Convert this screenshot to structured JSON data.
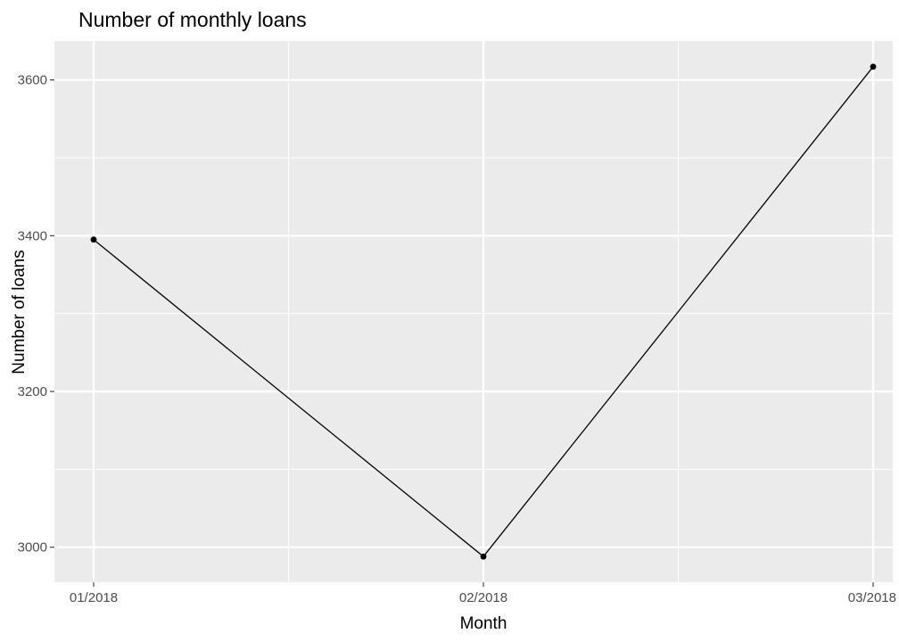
{
  "chart_data": {
    "type": "line",
    "title": "Number of monthly loans",
    "xlabel": "Month",
    "ylabel": "Number of loans",
    "categories": [
      "01/2018",
      "02/2018",
      "03/2018"
    ],
    "series": [
      {
        "values": [
          3395,
          2988,
          3617
        ],
        "color": "#000000"
      }
    ],
    "ylim": [
      2955,
      3650
    ],
    "yticks": [
      3000,
      3200,
      3400,
      3600
    ],
    "grid": true,
    "panel_background": "#ebebeb",
    "grid_color": "#ffffff",
    "legend": "none"
  }
}
